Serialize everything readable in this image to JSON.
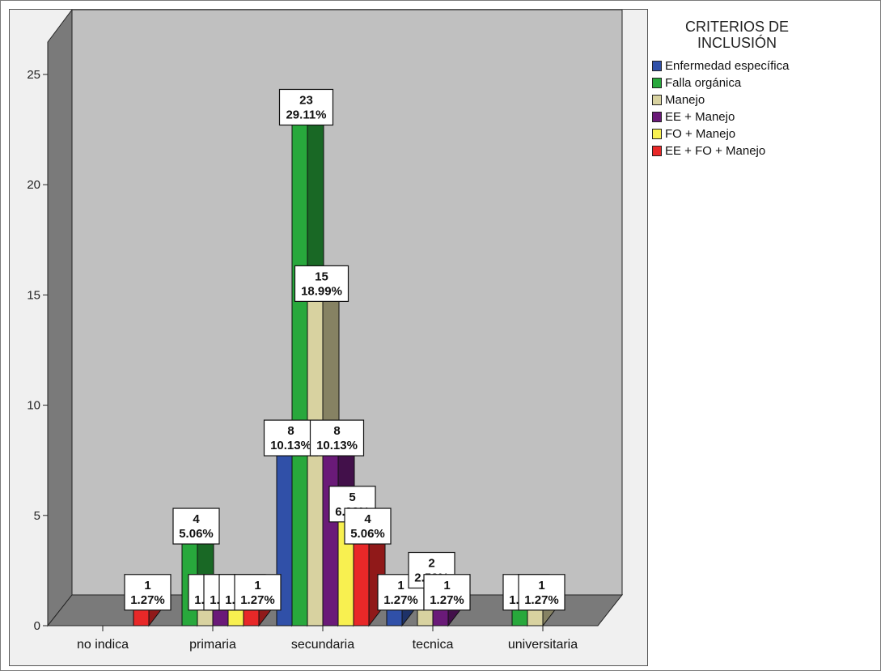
{
  "chart_data": {
    "type": "bar",
    "title": "",
    "xlabel": "",
    "ylabel": "",
    "ylim": [
      0,
      25
    ],
    "yticks": [
      0,
      5,
      10,
      15,
      20,
      25
    ],
    "legend_placement": "right",
    "legend_title": "CRITERIOS DE INCLUSIÓN",
    "categories": [
      "no indica",
      "primaria",
      "secundaria",
      "tecnica",
      "universitaria"
    ],
    "series": [
      {
        "name": "Enfermedad específica",
        "color": "#3050a8",
        "values": [
          0,
          0,
          8,
          1,
          0
        ],
        "labels": [
          "",
          "",
          "8\n10.13%",
          "1\n1.27%",
          ""
        ]
      },
      {
        "name": "Falla orgánica",
        "color": "#28a83c",
        "values": [
          0,
          4,
          23,
          0,
          1
        ],
        "labels": [
          "",
          "4\n5.06%",
          "23\n29.11%",
          "",
          "1\n1.27%"
        ]
      },
      {
        "name": "Manejo",
        "color": "#d8d2a0",
        "values": [
          0,
          1,
          15,
          2,
          1
        ],
        "labels": [
          "",
          "1\n1.27%",
          "15\n18.99%",
          "2\n2.53%",
          "1\n1.27%"
        ]
      },
      {
        "name": "EE + Manejo",
        "color": "#6a1a78",
        "values": [
          0,
          1,
          8,
          1,
          0
        ],
        "labels": [
          "",
          "1\n1.27%",
          "8\n10.13%",
          "1\n1.27%",
          ""
        ]
      },
      {
        "name": "FO + Manejo",
        "color": "#f8f050",
        "values": [
          0,
          1,
          5,
          0,
          0
        ],
        "labels": [
          "",
          "1\n1.27%",
          "5\n6.33%",
          "",
          ""
        ]
      },
      {
        "name": "EE + FO + Manejo",
        "color": "#e82828",
        "values": [
          1,
          1,
          4,
          0,
          0
        ],
        "labels": [
          "1\n1.27%",
          "1\n1.27%",
          "4\n5.06%",
          "",
          ""
        ]
      }
    ]
  },
  "legend": {
    "title_line1": "CRITERIOS DE",
    "title_line2": "INCLUSIÓN"
  }
}
